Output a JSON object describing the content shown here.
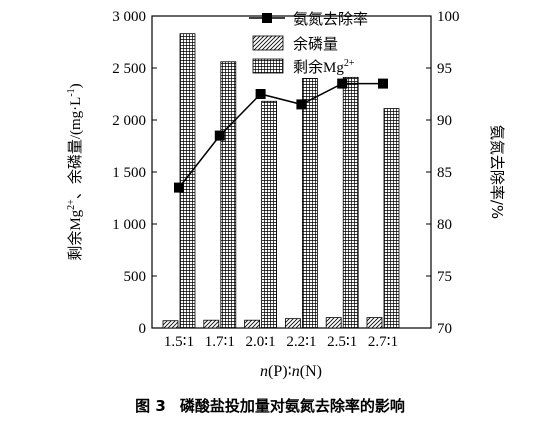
{
  "chart_data": {
    "type": "bar",
    "categories": [
      "1.5∶1",
      "1.7∶1",
      "2.0∶1",
      "2.2∶1",
      "2.5∶1",
      "2.7∶1"
    ],
    "series": [
      {
        "name": "余磷量",
        "type": "bar",
        "axis": "left",
        "pattern": "diagonal",
        "values": [
          70,
          75,
          75,
          90,
          100,
          100
        ]
      },
      {
        "name": "剩余Mg²⁺",
        "type": "bar",
        "axis": "left",
        "pattern": "grid",
        "values": [
          2830,
          2560,
          2180,
          2400,
          2410,
          2110
        ]
      },
      {
        "name": "氨氮去除率",
        "type": "line",
        "axis": "right",
        "marker": "square",
        "values": [
          83.5,
          88.5,
          92.5,
          91.5,
          93.5,
          93.5
        ]
      }
    ],
    "y_left": {
      "label": "剩余Mg²⁺、余磷量/(mg·L⁻¹)",
      "ylim": [
        0,
        3000
      ],
      "ticks": [
        0,
        500,
        1000,
        1500,
        2000,
        2500,
        3000
      ],
      "tick_labels": [
        "0",
        "500",
        "1 000",
        "1 500",
        "2 000",
        "2 500",
        "3 000"
      ]
    },
    "y_right": {
      "label": "氨氮去除率/%",
      "ylim": [
        70,
        100
      ],
      "ticks": [
        70,
        75,
        80,
        85,
        90,
        95,
        100
      ],
      "tick_labels": [
        "70",
        "75",
        "80",
        "85",
        "90",
        "95",
        "100"
      ]
    },
    "xlabel": "n(P)∶n(N)",
    "legend_position": "top-right",
    "grid": false,
    "caption_num": "图 3",
    "caption_text": "磷酸盐投加量对氨氮去除率的影响"
  }
}
